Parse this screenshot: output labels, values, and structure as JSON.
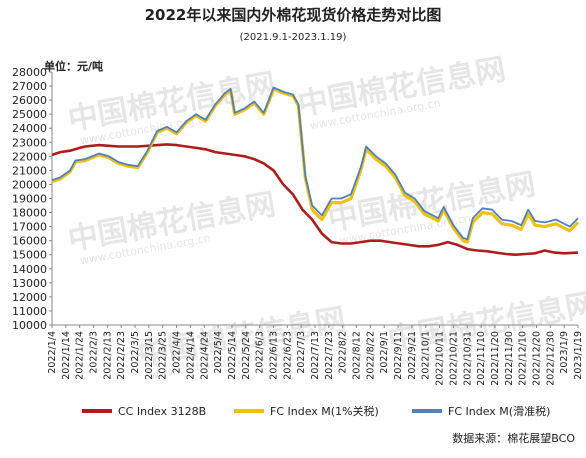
{
  "chart_data": {
    "type": "line",
    "title": "2022年以来国内外棉花现货价格走势对比图",
    "subtitle": "(2021.9.1-2023.1.19)",
    "ylabel": "单位：元/吨",
    "ylim": [
      10000,
      28000
    ],
    "y_ticks": [
      10000,
      11000,
      12000,
      13000,
      14000,
      15000,
      16000,
      17000,
      18000,
      19000,
      20000,
      21000,
      22000,
      23000,
      24000,
      25000,
      26000,
      27000,
      28000
    ],
    "x_tick_labels": [
      "2022/1/4",
      "2022/1/14",
      "2022/1/24",
      "2022/2/3",
      "2022/2/13",
      "2022/2/23",
      "2022/3/5",
      "2022/3/15",
      "2022/3/25",
      "2022/4/4",
      "2022/4/14",
      "2022/4/24",
      "2022/5/4",
      "2022/5/14",
      "2022/5/24",
      "2022/6/3",
      "2022/6/13",
      "2022/6/23",
      "2022/7/3",
      "2022/7/13",
      "2022/7/23",
      "2022/8/2",
      "2022/8/12",
      "2022/8/22",
      "2022/9/1",
      "2022/9/11",
      "2022/9/21",
      "2022/10/1",
      "2022/10/11",
      "2022/10/21",
      "2022/10/31",
      "2022/11/10",
      "2022/11/20",
      "2022/11/30",
      "2022/12/10",
      "2022/12/20",
      "2022/12/30",
      "2023/1/9",
      "2023/1/19"
    ],
    "x_range": [
      "2022/1/4",
      "2023/1/19"
    ],
    "grid": false,
    "legend_position": "bottom",
    "series": [
      {
        "name": "CC Index 3128B",
        "color": "#b01c1c",
        "points": [
          [
            "2022/1/4",
            22100
          ],
          [
            "2022/1/10",
            22300
          ],
          [
            "2022/1/17",
            22400
          ],
          [
            "2022/1/24",
            22600
          ],
          [
            "2022/1/28",
            22700
          ],
          [
            "2022/2/7",
            22800
          ],
          [
            "2022/2/14",
            22750
          ],
          [
            "2022/2/21",
            22700
          ],
          [
            "2022/2/28",
            22700
          ],
          [
            "2022/3/7",
            22700
          ],
          [
            "2022/3/14",
            22750
          ],
          [
            "2022/3/21",
            22800
          ],
          [
            "2022/3/28",
            22850
          ],
          [
            "2022/4/4",
            22800
          ],
          [
            "2022/4/11",
            22700
          ],
          [
            "2022/4/18",
            22600
          ],
          [
            "2022/4/25",
            22500
          ],
          [
            "2022/5/2",
            22300
          ],
          [
            "2022/5/9",
            22200
          ],
          [
            "2022/5/16",
            22100
          ],
          [
            "2022/5/23",
            22000
          ],
          [
            "2022/5/30",
            21800
          ],
          [
            "2022/6/6",
            21500
          ],
          [
            "2022/6/13",
            21000
          ],
          [
            "2022/6/20",
            20000
          ],
          [
            "2022/6/27",
            19300
          ],
          [
            "2022/7/4",
            18200
          ],
          [
            "2022/7/11",
            17500
          ],
          [
            "2022/7/18",
            16500
          ],
          [
            "2022/7/25",
            15900
          ],
          [
            "2022/8/1",
            15800
          ],
          [
            "2022/8/8",
            15800
          ],
          [
            "2022/8/15",
            15900
          ],
          [
            "2022/8/22",
            16000
          ],
          [
            "2022/8/29",
            16000
          ],
          [
            "2022/9/5",
            15900
          ],
          [
            "2022/9/12",
            15800
          ],
          [
            "2022/9/19",
            15700
          ],
          [
            "2022/9/26",
            15600
          ],
          [
            "2022/10/3",
            15600
          ],
          [
            "2022/10/10",
            15700
          ],
          [
            "2022/10/17",
            15900
          ],
          [
            "2022/10/24",
            15700
          ],
          [
            "2022/10/31",
            15400
          ],
          [
            "2022/11/7",
            15300
          ],
          [
            "2022/11/14",
            15250
          ],
          [
            "2022/11/21",
            15150
          ],
          [
            "2022/11/28",
            15050
          ],
          [
            "2022/12/5",
            15000
          ],
          [
            "2022/12/12",
            15050
          ],
          [
            "2022/12/19",
            15100
          ],
          [
            "2022/12/26",
            15300
          ],
          [
            "2023/1/2",
            15150
          ],
          [
            "2023/1/9",
            15100
          ],
          [
            "2023/1/19",
            15150
          ]
        ]
      },
      {
        "name": "FC Index M(1%关税)",
        "color": "#f2c10e",
        "points": [
          [
            "2022/1/4",
            20200
          ],
          [
            "2022/1/10",
            20400
          ],
          [
            "2022/1/17",
            20900
          ],
          [
            "2022/1/21",
            21600
          ],
          [
            "2022/1/28",
            21700
          ],
          [
            "2022/2/7",
            22100
          ],
          [
            "2022/2/14",
            21900
          ],
          [
            "2022/2/21",
            21500
          ],
          [
            "2022/2/28",
            21300
          ],
          [
            "2022/3/7",
            21200
          ],
          [
            "2022/3/14",
            22300
          ],
          [
            "2022/3/21",
            23700
          ],
          [
            "2022/3/28",
            24000
          ],
          [
            "2022/4/4",
            23600
          ],
          [
            "2022/4/11",
            24400
          ],
          [
            "2022/4/18",
            24900
          ],
          [
            "2022/4/25",
            24500
          ],
          [
            "2022/5/2",
            25600
          ],
          [
            "2022/5/9",
            26400
          ],
          [
            "2022/5/13",
            26700
          ],
          [
            "2022/5/16",
            25000
          ],
          [
            "2022/5/23",
            25300
          ],
          [
            "2022/5/30",
            25800
          ],
          [
            "2022/6/6",
            25000
          ],
          [
            "2022/6/10",
            26000
          ],
          [
            "2022/6/13",
            26800
          ],
          [
            "2022/6/20",
            26500
          ],
          [
            "2022/6/27",
            26300
          ],
          [
            "2022/7/1",
            25600
          ],
          [
            "2022/7/6",
            20500
          ],
          [
            "2022/7/11",
            18200
          ],
          [
            "2022/7/18",
            17500
          ],
          [
            "2022/7/25",
            18700
          ],
          [
            "2022/8/1",
            18700
          ],
          [
            "2022/8/8",
            19000
          ],
          [
            "2022/8/15",
            21000
          ],
          [
            "2022/8/19",
            22500
          ],
          [
            "2022/8/26",
            21800
          ],
          [
            "2022/9/2",
            21300
          ],
          [
            "2022/9/9",
            20500
          ],
          [
            "2022/9/16",
            19200
          ],
          [
            "2022/9/23",
            18800
          ],
          [
            "2022/9/30",
            17900
          ],
          [
            "2022/10/10",
            17400
          ],
          [
            "2022/10/14",
            18200
          ],
          [
            "2022/10/21",
            16900
          ],
          [
            "2022/10/28",
            16000
          ],
          [
            "2022/10/31",
            15900
          ],
          [
            "2022/11/4",
            17300
          ],
          [
            "2022/11/11",
            18000
          ],
          [
            "2022/11/18",
            17900
          ],
          [
            "2022/11/25",
            17200
          ],
          [
            "2022/12/2",
            17100
          ],
          [
            "2022/12/9",
            16800
          ],
          [
            "2022/12/14",
            17900
          ],
          [
            "2022/12/19",
            17100
          ],
          [
            "2022/12/26",
            17000
          ],
          [
            "2023/1/3",
            17200
          ],
          [
            "2023/1/9",
            16900
          ],
          [
            "2023/1/13",
            16700
          ],
          [
            "2023/1/19",
            17300
          ]
        ]
      },
      {
        "name": "FC Index M(滑准税)",
        "color": "#4f81bd",
        "points": [
          [
            "2022/1/4",
            20300
          ],
          [
            "2022/1/10",
            20500
          ],
          [
            "2022/1/17",
            21000
          ],
          [
            "2022/1/21",
            21700
          ],
          [
            "2022/1/28",
            21800
          ],
          [
            "2022/2/7",
            22200
          ],
          [
            "2022/2/14",
            22000
          ],
          [
            "2022/2/21",
            21600
          ],
          [
            "2022/2/28",
            21400
          ],
          [
            "2022/3/7",
            21300
          ],
          [
            "2022/3/14",
            22400
          ],
          [
            "2022/3/21",
            23800
          ],
          [
            "2022/3/28",
            24100
          ],
          [
            "2022/4/4",
            23700
          ],
          [
            "2022/4/11",
            24500
          ],
          [
            "2022/4/18",
            25000
          ],
          [
            "2022/4/25",
            24600
          ],
          [
            "2022/5/2",
            25700
          ],
          [
            "2022/5/9",
            26500
          ],
          [
            "2022/5/13",
            26800
          ],
          [
            "2022/5/16",
            25100
          ],
          [
            "2022/5/23",
            25400
          ],
          [
            "2022/5/30",
            25900
          ],
          [
            "2022/6/6",
            25100
          ],
          [
            "2022/6/10",
            26100
          ],
          [
            "2022/6/13",
            26900
          ],
          [
            "2022/6/20",
            26600
          ],
          [
            "2022/6/27",
            26400
          ],
          [
            "2022/7/1",
            25700
          ],
          [
            "2022/7/6",
            20600
          ],
          [
            "2022/7/11",
            18500
          ],
          [
            "2022/7/18",
            17800
          ],
          [
            "2022/7/25",
            19000
          ],
          [
            "2022/8/1",
            19000
          ],
          [
            "2022/8/8",
            19300
          ],
          [
            "2022/8/15",
            21200
          ],
          [
            "2022/8/19",
            22700
          ],
          [
            "2022/8/26",
            22000
          ],
          [
            "2022/9/2",
            21500
          ],
          [
            "2022/9/9",
            20700
          ],
          [
            "2022/9/16",
            19400
          ],
          [
            "2022/9/23",
            19000
          ],
          [
            "2022/9/30",
            18100
          ],
          [
            "2022/10/10",
            17600
          ],
          [
            "2022/10/14",
            18400
          ],
          [
            "2022/10/21",
            17100
          ],
          [
            "2022/10/28",
            16200
          ],
          [
            "2022/10/31",
            16100
          ],
          [
            "2022/11/4",
            17600
          ],
          [
            "2022/11/11",
            18300
          ],
          [
            "2022/11/18",
            18200
          ],
          [
            "2022/11/25",
            17500
          ],
          [
            "2022/12/2",
            17400
          ],
          [
            "2022/12/9",
            17100
          ],
          [
            "2022/12/14",
            18200
          ],
          [
            "2022/12/19",
            17400
          ],
          [
            "2022/12/26",
            17300
          ],
          [
            "2023/1/3",
            17500
          ],
          [
            "2023/1/9",
            17200
          ],
          [
            "2023/1/13",
            17000
          ],
          [
            "2023/1/19",
            17600
          ]
        ]
      }
    ],
    "source": "数据来源：棉花展望BCO"
  },
  "watermark": {
    "brand": "中国棉花信息网",
    "url": "www.cottonchina.org.cn"
  }
}
